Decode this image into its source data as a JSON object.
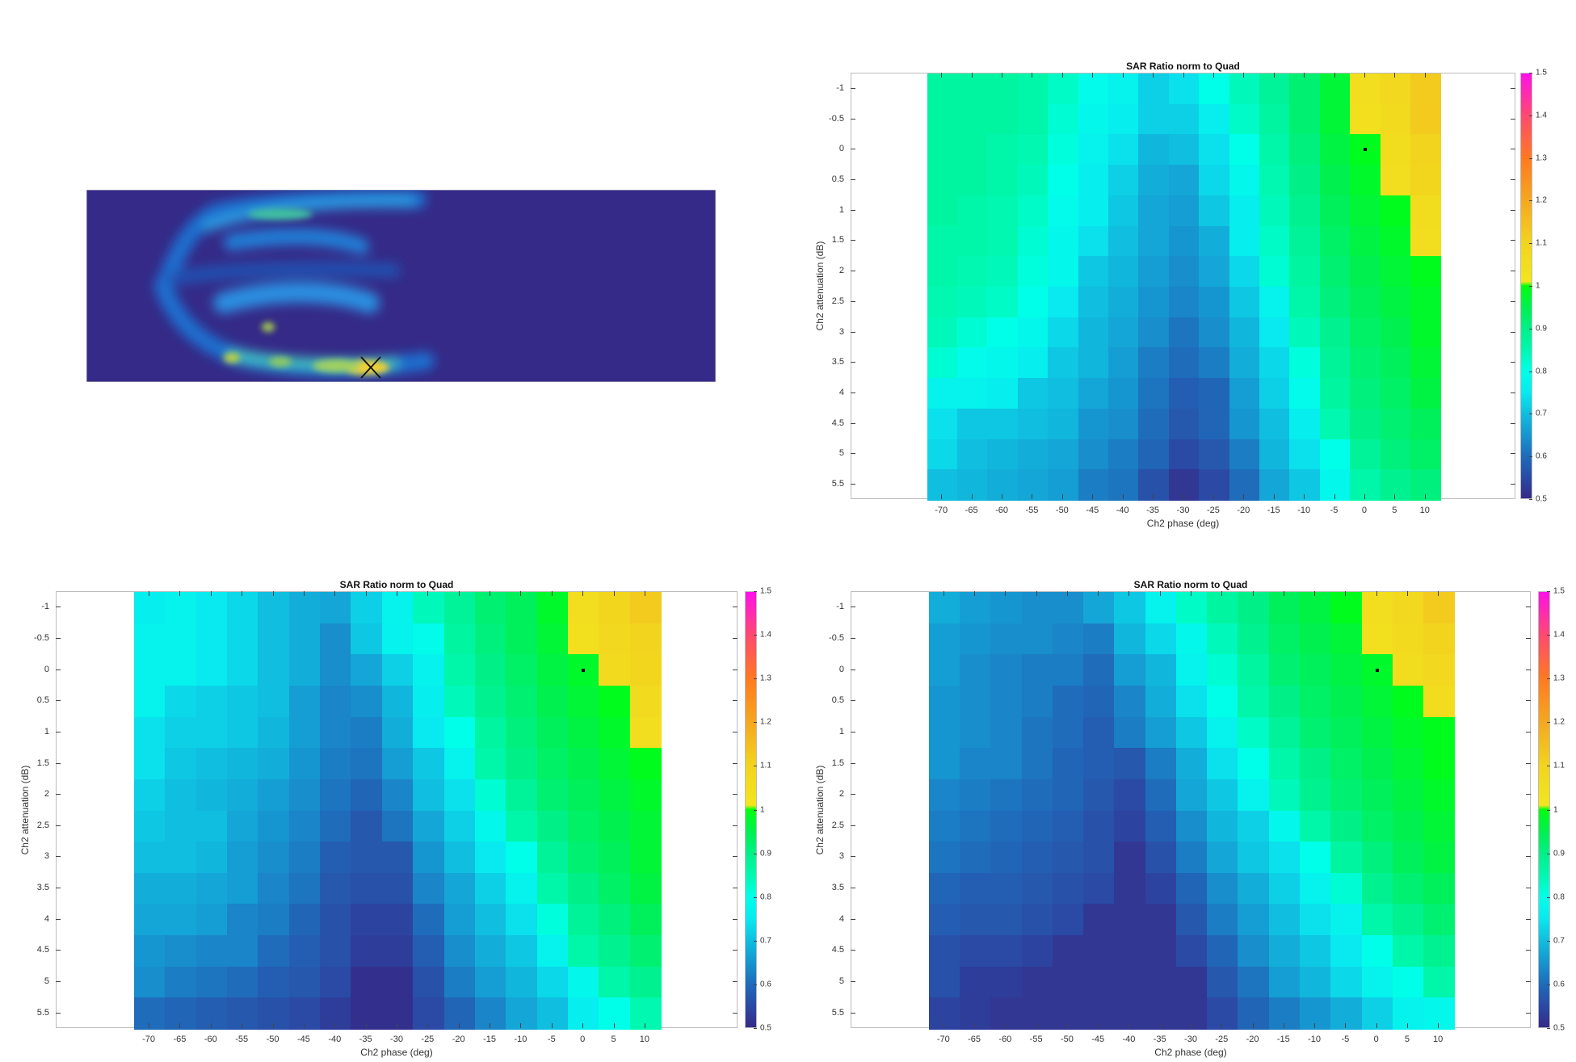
{
  "sar_image": {
    "marker": "X"
  },
  "colormap": [
    [
      0.5,
      "#352a87"
    ],
    [
      0.55,
      "#2a4aa6"
    ],
    [
      0.6,
      "#1f6cbb"
    ],
    [
      0.65,
      "#1696d0"
    ],
    [
      0.7,
      "#10bedf"
    ],
    [
      0.75,
      "#08eaf0"
    ],
    [
      0.8,
      "#00ffe8"
    ],
    [
      0.85,
      "#00f8b0"
    ],
    [
      0.9,
      "#00f088"
    ],
    [
      0.95,
      "#00f050"
    ],
    [
      1.0,
      "#00ff10"
    ],
    [
      1.0001,
      "#f2e81e"
    ],
    [
      1.1,
      "#f2d41e"
    ],
    [
      1.2,
      "#f5a820"
    ],
    [
      1.3,
      "#ff7a20"
    ],
    [
      1.4,
      "#ff4a70"
    ],
    [
      1.5,
      "#ff10e8"
    ]
  ],
  "chart_data": [
    {
      "type": "heatmap",
      "title": "SAR Ratio norm to Quad",
      "xlabel": "Ch2 phase (deg)",
      "ylabel": "Ch2 attenuation (dB)",
      "x": [
        -70,
        -65,
        -60,
        -55,
        -50,
        -45,
        -40,
        -35,
        -30,
        -25,
        -20,
        -15,
        -10,
        -5,
        0,
        5,
        10
      ],
      "y": [
        -1,
        -0.5,
        0,
        0.5,
        1,
        1.5,
        2,
        2.5,
        3,
        3.5,
        4,
        4.5,
        5,
        5.5
      ],
      "xlim": [
        -85,
        25
      ],
      "ylim": [
        -1.25,
        5.75
      ],
      "clim": [
        0.5,
        1.5
      ],
      "colorbar_ticks": [
        "0.5",
        "0.6",
        "0.7",
        "0.8",
        "0.9",
        "1",
        "1.1",
        "1.2",
        "1.3",
        "1.4",
        "1.5"
      ],
      "marker": {
        "x": 0,
        "y": 0
      },
      "values": [
        [
          0.87,
          0.87,
          0.87,
          0.86,
          0.83,
          0.79,
          0.77,
          0.72,
          0.74,
          0.8,
          0.84,
          0.88,
          0.92,
          0.97,
          1.05,
          1.08,
          1.12
        ],
        [
          0.87,
          0.87,
          0.87,
          0.86,
          0.82,
          0.78,
          0.76,
          0.72,
          0.72,
          0.76,
          0.83,
          0.87,
          0.92,
          0.97,
          1.04,
          1.07,
          1.12
        ],
        [
          0.87,
          0.87,
          0.86,
          0.85,
          0.81,
          0.77,
          0.74,
          0.69,
          0.7,
          0.74,
          0.8,
          0.86,
          0.91,
          0.96,
          0.99,
          1.06,
          1.1
        ],
        [
          0.87,
          0.87,
          0.86,
          0.84,
          0.8,
          0.76,
          0.72,
          0.68,
          0.67,
          0.73,
          0.78,
          0.85,
          0.9,
          0.95,
          0.98,
          1.05,
          1.09
        ],
        [
          0.87,
          0.86,
          0.85,
          0.83,
          0.79,
          0.76,
          0.71,
          0.67,
          0.66,
          0.71,
          0.76,
          0.84,
          0.89,
          0.94,
          0.97,
          0.99,
          1.06
        ],
        [
          0.86,
          0.86,
          0.85,
          0.82,
          0.78,
          0.74,
          0.7,
          0.67,
          0.65,
          0.68,
          0.76,
          0.83,
          0.88,
          0.93,
          0.96,
          0.98,
          1.05
        ],
        [
          0.86,
          0.85,
          0.84,
          0.81,
          0.78,
          0.71,
          0.69,
          0.66,
          0.64,
          0.67,
          0.73,
          0.82,
          0.87,
          0.92,
          0.95,
          0.97,
          0.99
        ],
        [
          0.85,
          0.84,
          0.83,
          0.8,
          0.75,
          0.7,
          0.68,
          0.65,
          0.63,
          0.65,
          0.71,
          0.77,
          0.86,
          0.91,
          0.94,
          0.96,
          0.98
        ],
        [
          0.84,
          0.82,
          0.8,
          0.78,
          0.73,
          0.69,
          0.67,
          0.64,
          0.61,
          0.64,
          0.69,
          0.75,
          0.84,
          0.89,
          0.93,
          0.95,
          0.98
        ],
        [
          0.82,
          0.79,
          0.78,
          0.76,
          0.71,
          0.69,
          0.66,
          0.62,
          0.6,
          0.62,
          0.68,
          0.73,
          0.81,
          0.88,
          0.92,
          0.94,
          0.97
        ],
        [
          0.77,
          0.77,
          0.76,
          0.71,
          0.7,
          0.67,
          0.65,
          0.61,
          0.58,
          0.59,
          0.66,
          0.72,
          0.79,
          0.87,
          0.91,
          0.93,
          0.96
        ],
        [
          0.74,
          0.71,
          0.71,
          0.7,
          0.69,
          0.65,
          0.64,
          0.6,
          0.57,
          0.59,
          0.65,
          0.7,
          0.76,
          0.85,
          0.9,
          0.92,
          0.94
        ],
        [
          0.73,
          0.7,
          0.69,
          0.68,
          0.67,
          0.64,
          0.62,
          0.59,
          0.55,
          0.57,
          0.62,
          0.69,
          0.74,
          0.8,
          0.88,
          0.91,
          0.93
        ],
        [
          0.7,
          0.69,
          0.68,
          0.67,
          0.66,
          0.62,
          0.61,
          0.56,
          0.52,
          0.55,
          0.6,
          0.67,
          0.71,
          0.78,
          0.86,
          0.89,
          0.91
        ]
      ]
    },
    {
      "type": "heatmap",
      "title": "SAR Ratio norm to Quad",
      "xlabel": "Ch2 phase (deg)",
      "ylabel": "Ch2 attenuation (dB)",
      "x": [
        -70,
        -65,
        -60,
        -55,
        -50,
        -45,
        -40,
        -35,
        -30,
        -25,
        -20,
        -15,
        -10,
        -5,
        0,
        5,
        10
      ],
      "y": [
        -1,
        -0.5,
        0,
        0.5,
        1,
        1.5,
        2,
        2.5,
        3,
        3.5,
        4,
        4.5,
        5,
        5.5
      ],
      "xlim": [
        -85,
        25
      ],
      "ylim": [
        -1.25,
        5.75
      ],
      "clim": [
        0.5,
        1.5
      ],
      "colorbar_ticks": [
        "0.5",
        "0.6",
        "0.7",
        "0.8",
        "0.9",
        "1",
        "1.1",
        "1.2",
        "1.3",
        "1.4",
        "1.5"
      ],
      "marker": {
        "x": 0,
        "y": 0
      },
      "values": [
        [
          0.76,
          0.77,
          0.75,
          0.73,
          0.7,
          0.68,
          0.67,
          0.72,
          0.77,
          0.84,
          0.88,
          0.92,
          0.94,
          0.98,
          1.05,
          1.09,
          1.12
        ],
        [
          0.77,
          0.77,
          0.75,
          0.73,
          0.7,
          0.68,
          0.64,
          0.71,
          0.77,
          0.79,
          0.87,
          0.91,
          0.94,
          0.97,
          1.04,
          1.08,
          1.1
        ],
        [
          0.77,
          0.77,
          0.75,
          0.73,
          0.7,
          0.68,
          0.64,
          0.67,
          0.72,
          0.77,
          0.86,
          0.9,
          0.93,
          0.96,
          0.98,
          1.07,
          1.09
        ],
        [
          0.77,
          0.73,
          0.72,
          0.71,
          0.7,
          0.66,
          0.63,
          0.64,
          0.69,
          0.76,
          0.84,
          0.89,
          0.92,
          0.95,
          0.97,
          0.99,
          1.07
        ],
        [
          0.74,
          0.72,
          0.72,
          0.71,
          0.69,
          0.66,
          0.63,
          0.62,
          0.68,
          0.75,
          0.8,
          0.87,
          0.91,
          0.94,
          0.96,
          0.98,
          1.05
        ],
        [
          0.74,
          0.71,
          0.7,
          0.69,
          0.68,
          0.65,
          0.62,
          0.61,
          0.66,
          0.71,
          0.77,
          0.86,
          0.9,
          0.93,
          0.95,
          0.97,
          0.99
        ],
        [
          0.72,
          0.7,
          0.69,
          0.68,
          0.66,
          0.64,
          0.61,
          0.59,
          0.63,
          0.7,
          0.74,
          0.82,
          0.88,
          0.92,
          0.94,
          0.96,
          0.98
        ],
        [
          0.71,
          0.7,
          0.7,
          0.67,
          0.65,
          0.63,
          0.6,
          0.57,
          0.61,
          0.67,
          0.72,
          0.78,
          0.86,
          0.9,
          0.93,
          0.95,
          0.97
        ],
        [
          0.7,
          0.7,
          0.69,
          0.66,
          0.64,
          0.62,
          0.58,
          0.57,
          0.57,
          0.65,
          0.7,
          0.75,
          0.8,
          0.88,
          0.92,
          0.94,
          0.97
        ],
        [
          0.68,
          0.68,
          0.67,
          0.66,
          0.63,
          0.61,
          0.57,
          0.56,
          0.56,
          0.63,
          0.67,
          0.72,
          0.77,
          0.86,
          0.9,
          0.93,
          0.96
        ],
        [
          0.67,
          0.67,
          0.66,
          0.63,
          0.62,
          0.59,
          0.56,
          0.54,
          0.54,
          0.6,
          0.66,
          0.7,
          0.74,
          0.81,
          0.88,
          0.91,
          0.94
        ],
        [
          0.65,
          0.64,
          0.63,
          0.63,
          0.6,
          0.58,
          0.56,
          0.53,
          0.53,
          0.58,
          0.64,
          0.68,
          0.71,
          0.77,
          0.86,
          0.89,
          0.92
        ],
        [
          0.64,
          0.62,
          0.61,
          0.6,
          0.58,
          0.57,
          0.55,
          0.51,
          0.51,
          0.56,
          0.62,
          0.66,
          0.69,
          0.73,
          0.78,
          0.86,
          0.89
        ],
        [
          0.6,
          0.59,
          0.58,
          0.57,
          0.56,
          0.55,
          0.53,
          0.51,
          0.51,
          0.55,
          0.59,
          0.63,
          0.67,
          0.7,
          0.76,
          0.8,
          0.85
        ]
      ]
    },
    {
      "type": "heatmap",
      "title": "SAR Ratio norm to Quad",
      "xlabel": "Ch2 phase (deg)",
      "ylabel": "Ch2 attenuation (dB)",
      "x": [
        -70,
        -65,
        -60,
        -55,
        -50,
        -45,
        -40,
        -35,
        -30,
        -25,
        -20,
        -15,
        -10,
        -5,
        0,
        5,
        10
      ],
      "y": [
        -1,
        -0.5,
        0,
        0.5,
        1,
        1.5,
        2,
        2.5,
        3,
        3.5,
        4,
        4.5,
        5,
        5.5
      ],
      "xlim": [
        -85,
        25
      ],
      "ylim": [
        -1.25,
        5.75
      ],
      "clim": [
        0.5,
        1.5
      ],
      "colorbar_ticks": [
        "0.5",
        "0.6",
        "0.7",
        "0.8",
        "0.9",
        "1",
        "1.1",
        "1.2",
        "1.3",
        "1.4",
        "1.5"
      ],
      "marker": {
        "x": 0,
        "y": 0
      },
      "values": [
        [
          0.68,
          0.66,
          0.65,
          0.64,
          0.64,
          0.67,
          0.71,
          0.77,
          0.83,
          0.87,
          0.9,
          0.94,
          0.96,
          0.99,
          1.05,
          1.08,
          1.12
        ],
        [
          0.66,
          0.65,
          0.64,
          0.64,
          0.63,
          0.62,
          0.69,
          0.73,
          0.78,
          0.84,
          0.89,
          0.93,
          0.95,
          0.97,
          1.04,
          1.07,
          1.1
        ],
        [
          0.66,
          0.64,
          0.63,
          0.62,
          0.62,
          0.6,
          0.66,
          0.69,
          0.77,
          0.82,
          0.87,
          0.92,
          0.94,
          0.96,
          0.98,
          1.06,
          1.08
        ],
        [
          0.65,
          0.64,
          0.63,
          0.62,
          0.6,
          0.59,
          0.63,
          0.68,
          0.74,
          0.8,
          0.86,
          0.9,
          0.93,
          0.95,
          0.97,
          0.99,
          1.06
        ],
        [
          0.65,
          0.64,
          0.63,
          0.61,
          0.6,
          0.58,
          0.62,
          0.66,
          0.71,
          0.77,
          0.83,
          0.88,
          0.92,
          0.94,
          0.96,
          0.98,
          0.99
        ],
        [
          0.65,
          0.63,
          0.63,
          0.61,
          0.59,
          0.58,
          0.57,
          0.62,
          0.68,
          0.74,
          0.8,
          0.86,
          0.9,
          0.93,
          0.95,
          0.97,
          0.99
        ],
        [
          0.63,
          0.62,
          0.61,
          0.6,
          0.59,
          0.57,
          0.55,
          0.6,
          0.67,
          0.71,
          0.77,
          0.84,
          0.89,
          0.92,
          0.94,
          0.96,
          0.98
        ],
        [
          0.62,
          0.61,
          0.6,
          0.59,
          0.58,
          0.56,
          0.54,
          0.58,
          0.64,
          0.69,
          0.72,
          0.78,
          0.86,
          0.9,
          0.93,
          0.95,
          0.97
        ],
        [
          0.61,
          0.6,
          0.59,
          0.58,
          0.57,
          0.56,
          0.52,
          0.56,
          0.62,
          0.67,
          0.71,
          0.74,
          0.8,
          0.87,
          0.91,
          0.94,
          0.96
        ],
        [
          0.59,
          0.58,
          0.58,
          0.57,
          0.56,
          0.55,
          0.52,
          0.54,
          0.59,
          0.64,
          0.68,
          0.72,
          0.77,
          0.82,
          0.89,
          0.92,
          0.94
        ],
        [
          0.58,
          0.57,
          0.57,
          0.56,
          0.55,
          0.52,
          0.52,
          0.52,
          0.57,
          0.62,
          0.66,
          0.7,
          0.74,
          0.77,
          0.86,
          0.89,
          0.92
        ],
        [
          0.56,
          0.55,
          0.55,
          0.54,
          0.52,
          0.52,
          0.52,
          0.52,
          0.55,
          0.59,
          0.64,
          0.68,
          0.71,
          0.75,
          0.8,
          0.86,
          0.89
        ],
        [
          0.56,
          0.53,
          0.53,
          0.52,
          0.52,
          0.52,
          0.52,
          0.52,
          0.52,
          0.57,
          0.61,
          0.66,
          0.69,
          0.73,
          0.77,
          0.8,
          0.86
        ],
        [
          0.54,
          0.53,
          0.52,
          0.52,
          0.52,
          0.52,
          0.52,
          0.52,
          0.52,
          0.55,
          0.59,
          0.62,
          0.65,
          0.68,
          0.72,
          0.77,
          0.78
        ]
      ]
    }
  ]
}
